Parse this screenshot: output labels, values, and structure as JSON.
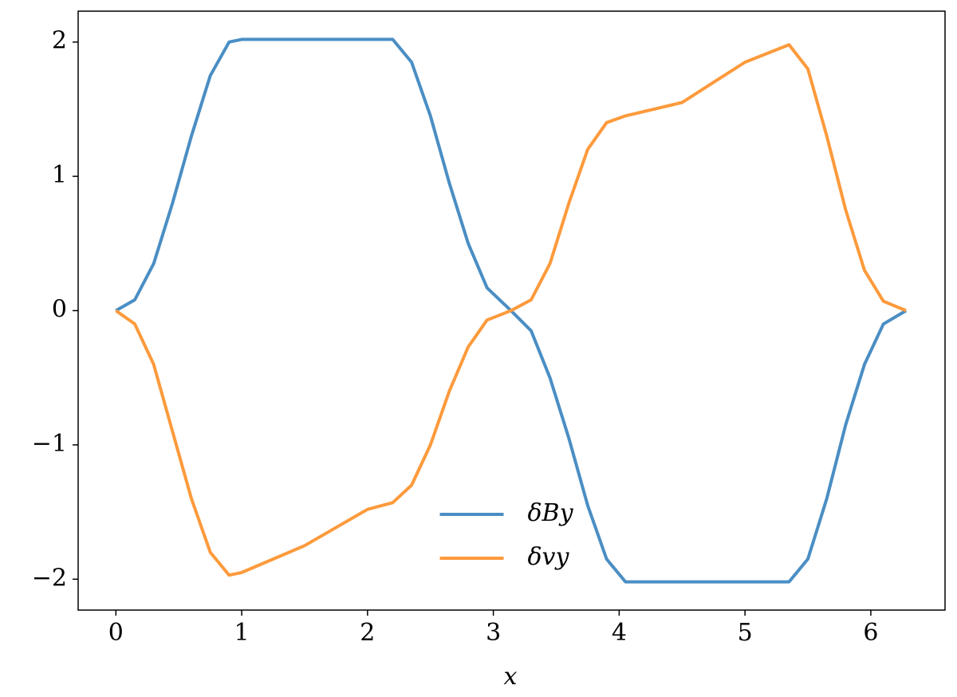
{
  "chart_data": {
    "type": "line",
    "xlabel": "x",
    "x": [
      0,
      0.15,
      0.3,
      0.45,
      0.6,
      0.75,
      0.9,
      1.0,
      1.5,
      2.0,
      2.2,
      2.35,
      2.5,
      2.65,
      2.8,
      2.95,
      3.14,
      3.3,
      3.45,
      3.6,
      3.75,
      3.9,
      4.05,
      4.5,
      5.0,
      5.35,
      5.5,
      5.65,
      5.8,
      5.95,
      6.1,
      6.28
    ],
    "series": [
      {
        "name": "δBy",
        "color": "#4a8ec4",
        "values": [
          0,
          0.08,
          0.35,
          0.8,
          1.3,
          1.75,
          2.0,
          2.02,
          2.02,
          2.02,
          2.02,
          1.85,
          1.45,
          0.95,
          0.5,
          0.17,
          0,
          -0.15,
          -0.5,
          -0.95,
          -1.45,
          -1.85,
          -2.02,
          -2.02,
          -2.02,
          -2.02,
          -1.85,
          -1.4,
          -0.85,
          -0.4,
          -0.1,
          0
        ]
      },
      {
        "name": "δvy",
        "color": "#fd9a3c",
        "values": [
          0,
          -0.1,
          -0.4,
          -0.9,
          -1.4,
          -1.8,
          -1.97,
          -1.95,
          -1.75,
          -1.48,
          -1.43,
          -1.3,
          -1.0,
          -0.6,
          -0.27,
          -0.07,
          0,
          0.08,
          0.35,
          0.8,
          1.2,
          1.4,
          1.45,
          1.55,
          1.85,
          1.98,
          1.8,
          1.3,
          0.75,
          0.3,
          0.07,
          0
        ]
      }
    ],
    "xlim": [
      -0.3,
      6.59
    ],
    "ylim": [
      -2.23,
      2.23
    ],
    "xticks": [
      0,
      1,
      2,
      3,
      4,
      5,
      6
    ],
    "yticks": [
      {
        "value": -2,
        "label": "−2"
      },
      {
        "value": -1,
        "label": "−1"
      },
      0,
      1,
      2
    ],
    "legend": "lower center"
  }
}
